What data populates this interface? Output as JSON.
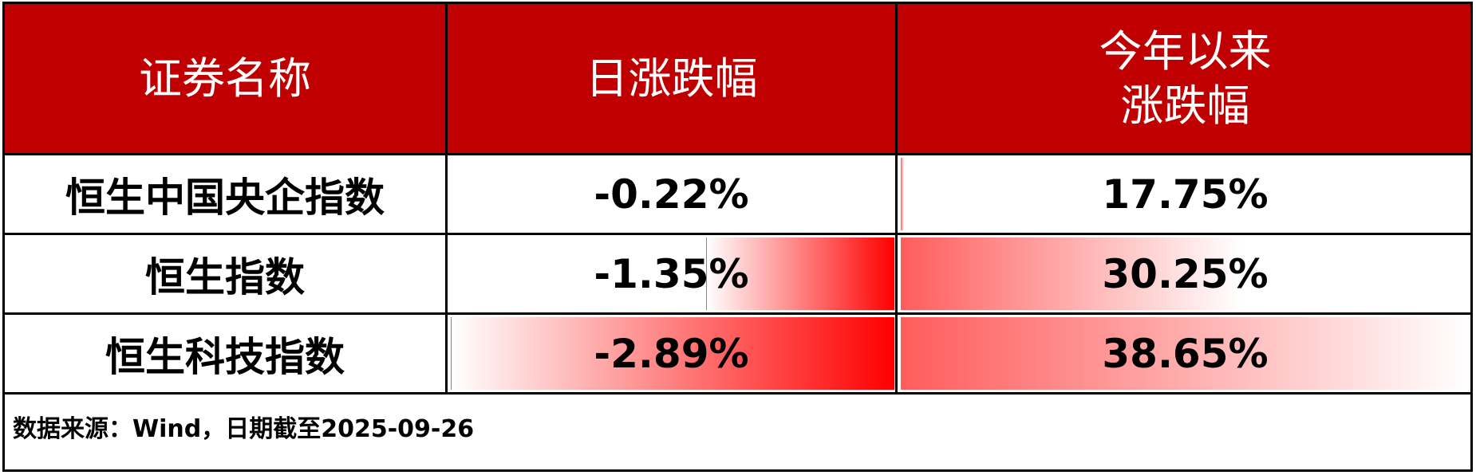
{
  "headers": [
    "证券名称",
    "日涨跌幅",
    "今年以来\n涨跌幅"
  ],
  "header_lines": {
    "col3_line1": "今年以来",
    "col3_line2": "涨跌幅"
  },
  "colors": {
    "header_bg": "#C00000",
    "bar": "#FF0000",
    "text": "#000000"
  },
  "chart_data": {
    "type": "table",
    "columns": [
      "证券名称",
      "日涨跌幅",
      "今年以来涨跌幅"
    ],
    "rows": [
      {
        "name": "恒生中国央企指数",
        "daily": -0.22,
        "daily_label": "-0.22%",
        "ytd": 17.75,
        "ytd_label": "17.75%"
      },
      {
        "name": "恒生指数",
        "daily": -1.35,
        "daily_label": "-1.35%",
        "ytd": 30.25,
        "ytd_label": "30.25%"
      },
      {
        "name": "恒生科技指数",
        "daily": -2.89,
        "daily_label": "-2.89%",
        "ytd": 38.65,
        "ytd_label": "38.65%"
      }
    ]
  },
  "footer": "数据来源：Wind，日期截至2025-09-26"
}
